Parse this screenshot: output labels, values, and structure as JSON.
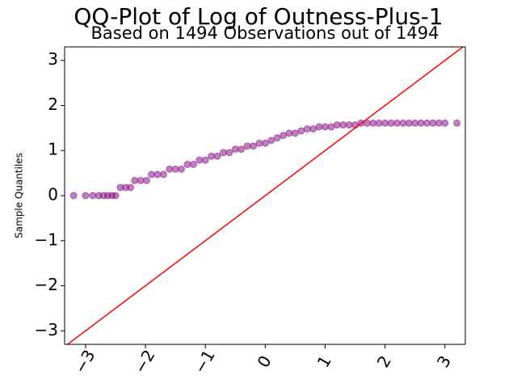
{
  "chart_data": {
    "type": "scatter",
    "title": "QQ-Plot of Log of Outness-Plus-1",
    "subtitle": "Based on 1494 Observations out of 1494",
    "y_label": "Sample Quantiles",
    "color": "purple",
    "alpha": 0.5,
    "reference_line": {
      "slope": 1,
      "intercept": 0,
      "color": "red"
    },
    "x": [
      -3.2,
      -3.0,
      -2.88,
      -2.78,
      -2.7,
      -2.63,
      -2.56,
      -2.5,
      -2.42,
      -2.33,
      -2.25,
      -2.18,
      -2.08,
      -1.98,
      -1.9,
      -1.8,
      -1.7,
      -1.6,
      -1.5,
      -1.4,
      -1.3,
      -1.2,
      -1.1,
      -1.0,
      -0.9,
      -0.8,
      -0.7,
      -0.6,
      -0.5,
      -0.4,
      -0.3,
      -0.2,
      -0.1,
      0.0,
      0.1,
      0.2,
      0.3,
      0.4,
      0.5,
      0.6,
      0.7,
      0.8,
      0.9,
      1.0,
      1.1,
      1.2,
      1.3,
      1.4,
      1.5,
      1.6,
      1.7,
      1.8,
      1.9,
      2.0,
      2.1,
      2.2,
      2.3,
      2.4,
      2.5,
      2.6,
      2.7,
      2.8,
      2.9,
      3.0,
      3.2
    ],
    "values": [
      0,
      0,
      0,
      0,
      0,
      0,
      0,
      0,
      0.18,
      0.18,
      0.18,
      0.336,
      0.336,
      0.336,
      0.47,
      0.47,
      0.47,
      0.588,
      0.588,
      0.588,
      0.693,
      0.693,
      0.788,
      0.788,
      0.875,
      0.875,
      0.956,
      0.956,
      1.03,
      1.03,
      1.099,
      1.099,
      1.163,
      1.163,
      1.224,
      1.28,
      1.335,
      1.386,
      1.386,
      1.435,
      1.48,
      1.48,
      1.526,
      1.526,
      1.526,
      1.569,
      1.569,
      1.569,
      1.569,
      1.609,
      1.609,
      1.609,
      1.609,
      1.609,
      1.609,
      1.609,
      1.609,
      1.609,
      1.609,
      1.609,
      1.609,
      1.609,
      1.609,
      1.609,
      1.609
    ],
    "xlim": [
      -3.35,
      3.34
    ],
    "ylim": [
      -3.3,
      3.3
    ],
    "xticks": [
      {
        "value": -3,
        "label": "−3"
      },
      {
        "value": -2,
        "label": "−2"
      },
      {
        "value": -1,
        "label": "−1"
      },
      0,
      1,
      2,
      3
    ],
    "yticks": [
      {
        "value": -3,
        "label": "−3"
      },
      {
        "value": -2,
        "label": "−2"
      },
      {
        "value": -1,
        "label": "−1"
      },
      0,
      1,
      2,
      3
    ]
  }
}
